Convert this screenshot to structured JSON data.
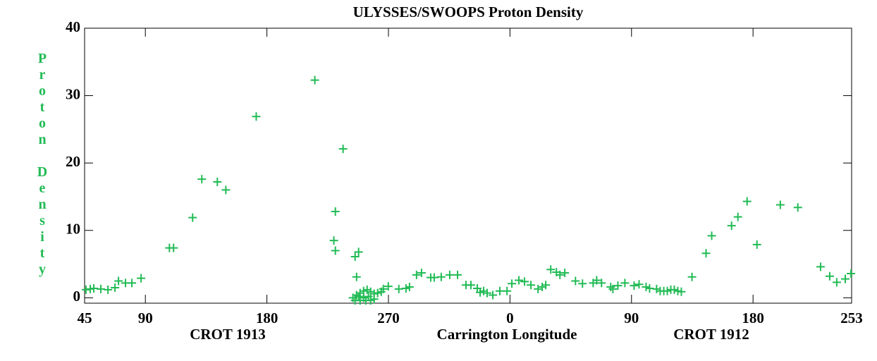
{
  "chart_data": {
    "type": "scatter",
    "title": "ULYSSES/SWOOPS Proton Density",
    "xlabel": "Carrington Longitude",
    "ylabel": "Proton Density",
    "annotations": [
      "CROT 1913",
      "CROT 1912"
    ],
    "color": "#22bb55",
    "xlim": [
      45,
      613
    ],
    "ylim": [
      -0.8,
      40
    ],
    "xticks": [
      45,
      90,
      180,
      270,
      {
        "value": 360,
        "label": "0"
      },
      {
        "value": 450,
        "label": "90"
      },
      {
        "value": 540,
        "label": "180"
      },
      {
        "value": 613,
        "label": "253"
      }
    ],
    "yticks": [
      0,
      10,
      20,
      30,
      40
    ],
    "x": [
      46.0,
      49.2,
      51.8,
      57.0,
      62.3,
      67.5,
      70.1,
      75.3,
      80.0,
      86.8,
      107.8,
      110.9,
      125.0,
      131.8,
      143.3,
      149.6,
      172.1,
      215.5,
      229.6,
      230.7,
      230.7,
      236.4,
      245.3,
      247.9,
      246.4,
      243.7,
      246.4,
      249.0,
      251.6,
      254.2,
      256.8,
      259.4,
      245.3,
      249.0,
      253.2,
      256.8,
      259.4,
      247.9,
      255.2,
      251.6,
      262.0,
      264.7,
      266.2,
      269.9,
      277.7,
      283.0,
      285.6,
      290.8,
      294.5,
      301.3,
      303.9,
      309.1,
      315.4,
      321.2,
      327.4,
      331.1,
      335.8,
      337.9,
      340.5,
      343.1,
      347.3,
      352.5,
      357.8,
      361.4,
      366.6,
      370.8,
      375.5,
      380.8,
      383.9,
      386.5,
      390.2,
      394.4,
      397.0,
      400.6,
      408.5,
      413.7,
      421.6,
      424.2,
      427.8,
      434.6,
      436.2,
      439.9,
      445.1,
      451.9,
      455.6,
      460.8,
      463.4,
      468.6,
      471.2,
      473.9,
      476.5,
      479.1,
      481.7,
      484.3,
      486.9,
      494.8,
      505.2,
      509.4,
      524.1,
      528.8,
      535.6,
      542.9,
      560.2,
      573.2,
      590.0,
      596.8,
      602.0,
      608.3,
      612.5
    ],
    "values": [
      1.2,
      1.3,
      1.4,
      1.3,
      1.2,
      1.5,
      2.5,
      2.2,
      2.2,
      2.9,
      7.4,
      7.4,
      11.9,
      17.6,
      17.2,
      16.0,
      26.9,
      32.3,
      8.5,
      12.8,
      7.0,
      22.1,
      6.1,
      6.8,
      3.1,
      0.0,
      0.4,
      0.7,
      1.0,
      1.2,
      0.9,
      0.6,
      -0.4,
      -0.4,
      -0.4,
      -0.4,
      -0.2,
      0.2,
      0.2,
      0.0,
      0.7,
      0.9,
      1.3,
      1.7,
      1.3,
      1.4,
      1.6,
      3.4,
      3.7,
      3.0,
      3.0,
      3.1,
      3.4,
      3.4,
      1.9,
      1.9,
      1.4,
      0.8,
      1.0,
      0.7,
      0.4,
      1.0,
      1.0,
      2.1,
      2.6,
      2.4,
      1.9,
      1.3,
      1.6,
      1.9,
      4.2,
      3.8,
      3.4,
      3.7,
      2.5,
      2.1,
      2.2,
      2.6,
      2.2,
      1.6,
      1.3,
      1.8,
      2.2,
      1.8,
      2.0,
      1.6,
      1.4,
      1.3,
      1.0,
      1.0,
      1.0,
      1.2,
      1.2,
      1.0,
      0.9,
      3.1,
      6.6,
      9.2,
      10.7,
      12.0,
      14.3,
      7.9,
      13.8,
      13.4,
      4.6,
      3.2,
      2.3,
      2.8,
      3.6
    ]
  }
}
